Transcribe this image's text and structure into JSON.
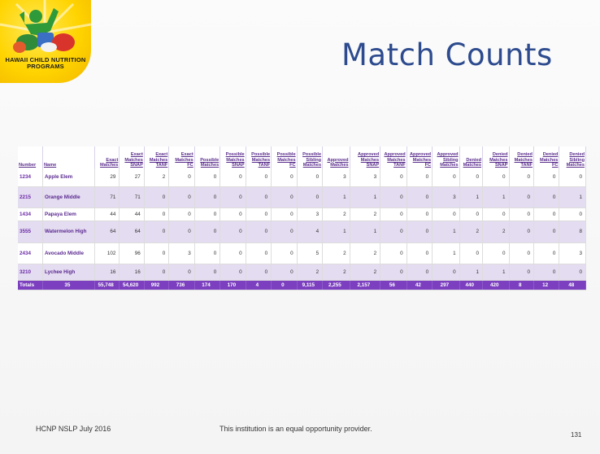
{
  "logo": {
    "text": "HAWAII CHILD NUTRITION PROGRAMS",
    "colors": {
      "yellow": "#ffd400",
      "green": "#2f9a3a",
      "red": "#d9342b"
    }
  },
  "title": "Match Counts",
  "table": {
    "headers": [
      "Number",
      "Name",
      "Exact Matches",
      "Exact Matches SNAP",
      "Exact Matches TANF",
      "Exact Matches FC",
      "Possible Matches",
      "Possible Matches SNAP",
      "Possible Matches TANF",
      "Possible Matches FC",
      "Possible Sibling Matches",
      "Approved Matches",
      "Approved Matches SNAP",
      "Approved Matches TANF",
      "Approved Matches FC",
      "Approved Sibling Matches",
      "Denied Matches",
      "Denied Matches SNAP",
      "Denied Matches TANF",
      "Denied Matches FC",
      "Denied Sibling Matches"
    ],
    "rows": [
      {
        "number": "1234",
        "name": "Apple Elem",
        "values": [
          "29",
          "27",
          "2",
          "0",
          "0",
          "0",
          "0",
          "0",
          "0",
          "3",
          "3",
          "0",
          "0",
          "0",
          "0",
          "0",
          "0",
          "0",
          "0"
        ]
      },
      {
        "number": "2215",
        "name": "Orange Middle",
        "values": [
          "71",
          "71",
          "0",
          "0",
          "0",
          "0",
          "0",
          "0",
          "0",
          "1",
          "1",
          "0",
          "0",
          "3",
          "1",
          "1",
          "0",
          "0",
          "1"
        ]
      },
      {
        "number": "1434",
        "name": "Papaya Elem",
        "values": [
          "44",
          "44",
          "0",
          "0",
          "0",
          "0",
          "0",
          "0",
          "3",
          "2",
          "2",
          "0",
          "0",
          "0",
          "0",
          "0",
          "0",
          "0",
          "0"
        ]
      },
      {
        "number": "3555",
        "name": "Watermelon High",
        "values": [
          "64",
          "64",
          "0",
          "0",
          "0",
          "0",
          "0",
          "0",
          "4",
          "1",
          "1",
          "0",
          "0",
          "1",
          "2",
          "2",
          "0",
          "0",
          "8"
        ]
      },
      {
        "number": "2434",
        "name": "Avocado Middle",
        "values": [
          "102",
          "96",
          "0",
          "3",
          "0",
          "0",
          "0",
          "0",
          "5",
          "2",
          "2",
          "0",
          "0",
          "1",
          "0",
          "0",
          "0",
          "0",
          "3"
        ]
      },
      {
        "number": "3210",
        "name": "Lychee High",
        "values": [
          "16",
          "16",
          "0",
          "0",
          "0",
          "0",
          "0",
          "0",
          "2",
          "2",
          "2",
          "0",
          "0",
          "0",
          "1",
          "1",
          "0",
          "0",
          "0"
        ]
      }
    ],
    "totals": {
      "label": "Totals",
      "count": "35",
      "values": [
        "55,748",
        "54,620",
        "992",
        "736",
        "174",
        "170",
        "4",
        "0",
        "9,115",
        "2,255",
        "2,157",
        "56",
        "42",
        "297",
        "440",
        "420",
        "8",
        "12",
        "48"
      ]
    }
  },
  "footer": {
    "left": "HCNP NSLP July 2016",
    "center": "This institution is an equal opportunity provider.",
    "page": "131"
  }
}
